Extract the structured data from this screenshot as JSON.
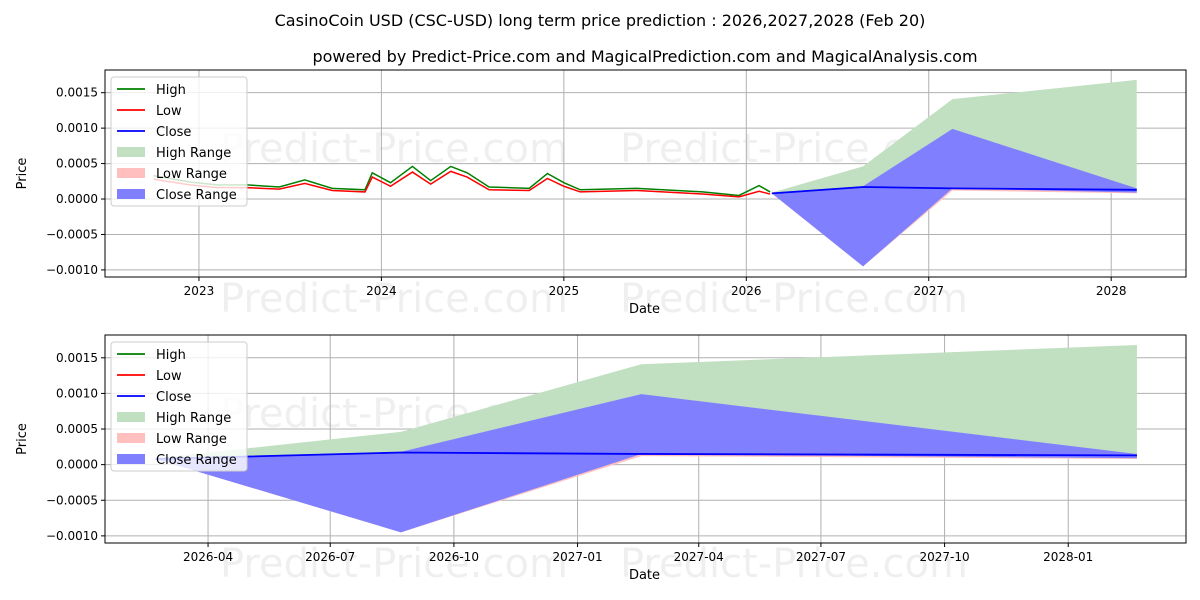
{
  "title": "CasinoCoin USD (CSC-USD) long term price prediction : 2026,2027,2028 (Feb 20)",
  "subtitle": "powered by Predict-Price.com and MagicalPrediction.com and MagicalAnalysis.com",
  "watermark": "Predict-Price.com",
  "colors": {
    "high": "#008000",
    "low": "#ff0000",
    "close": "#0000ff",
    "high_range": "#c1dfc1",
    "low_range": "#ffbfbf",
    "close_range": "#8080ff"
  },
  "legend": [
    "High",
    "Low",
    "Close",
    "High Range",
    "Low Range",
    "Close Range"
  ],
  "chart_data": [
    {
      "type": "line",
      "name": "top",
      "xlabel": "Date",
      "ylabel": "Price",
      "xlim": [
        2022.485,
        2028.41
      ],
      "ylim": [
        -0.0011,
        0.00182
      ],
      "xticks": [
        {
          "v": 2023,
          "label": "2023"
        },
        {
          "v": 2024,
          "label": "2024"
        },
        {
          "v": 2025,
          "label": "2025"
        },
        {
          "v": 2026,
          "label": "2026"
        },
        {
          "v": 2027,
          "label": "2027"
        },
        {
          "v": 2028,
          "label": "2028"
        }
      ],
      "yticks": [
        {
          "v": 0.0015,
          "label": "0.0015"
        },
        {
          "v": 0.001,
          "label": "0.0010"
        },
        {
          "v": 0.0005,
          "label": "0.0005"
        },
        {
          "v": 0,
          "label": "0.0000"
        },
        {
          "v": -0.0005,
          "label": "−0.0005"
        },
        {
          "v": -0.001,
          "label": "−0.0010"
        }
      ],
      "history": {
        "x": [
          2022.75,
          2022.95,
          2023.1,
          2023.26,
          2023.44,
          2023.58,
          2023.73,
          2023.91,
          2023.95,
          2024.05,
          2024.17,
          2024.27,
          2024.38,
          2024.47,
          2024.59,
          2024.81,
          2024.91,
          2025.0,
          2025.09,
          2025.4,
          2025.76,
          2025.96,
          2026.07,
          2026.13
        ],
        "high": [
          0.00033,
          0.00024,
          0.0002,
          0.0002,
          0.00017,
          0.00027,
          0.00015,
          0.00013,
          0.00037,
          0.00023,
          0.00046,
          0.00026,
          0.00046,
          0.00037,
          0.00017,
          0.00015,
          0.00036,
          0.00023,
          0.00013,
          0.00015,
          0.0001,
          5e-05,
          0.00019,
          0.0001
        ],
        "low": [
          0.00028,
          0.0002,
          0.00016,
          0.00016,
          0.00014,
          0.00022,
          0.00012,
          0.0001,
          0.00031,
          0.00018,
          0.00038,
          0.00021,
          0.00039,
          0.00031,
          0.00013,
          0.00012,
          0.00029,
          0.00018,
          0.0001,
          0.00012,
          7e-05,
          3e-05,
          0.00011,
          7e-05
        ]
      }
    },
    {
      "type": "line",
      "name": "bottom",
      "xlabel": "Date",
      "ylabel": "Price",
      "xlim": [
        2026.037,
        2028.24
      ],
      "ylim": [
        -0.0011,
        0.00182
      ],
      "xticks": [
        {
          "v": 2026.247,
          "label": "2026-04"
        },
        {
          "v": 2026.496,
          "label": "2026-07"
        },
        {
          "v": 2026.748,
          "label": "2026-10"
        },
        {
          "v": 2027.0,
          "label": "2027-01"
        },
        {
          "v": 2027.247,
          "label": "2027-04"
        },
        {
          "v": 2027.496,
          "label": "2027-07"
        },
        {
          "v": 2027.748,
          "label": "2027-10"
        },
        {
          "v": 2028.0,
          "label": "2028-01"
        }
      ],
      "yticks": [
        {
          "v": 0.0015,
          "label": "0.0015"
        },
        {
          "v": 0.001,
          "label": "0.0010"
        },
        {
          "v": 0.0005,
          "label": "0.0005"
        },
        {
          "v": 0,
          "label": "0.0000"
        },
        {
          "v": -0.0005,
          "label": "−0.0005"
        },
        {
          "v": -0.001,
          "label": "−0.0010"
        }
      ]
    }
  ],
  "forecast": {
    "x": [
      2026.14,
      2026.64,
      2027.13,
      2028.14
    ],
    "close": [
      8e-05,
      0.00017,
      0.00015,
      0.00013
    ],
    "high_range_upper": [
      9e-05,
      0.00046,
      0.00141,
      0.00168
    ],
    "close_range_upper": [
      9e-05,
      0.00018,
      0.00099,
      0.00015
    ],
    "close_range_lower": [
      8e-05,
      -0.00095,
      0.00015,
      9e-05
    ],
    "low_range_lower": [
      8e-05,
      -0.00095,
      0.00012,
      8e-05
    ]
  }
}
